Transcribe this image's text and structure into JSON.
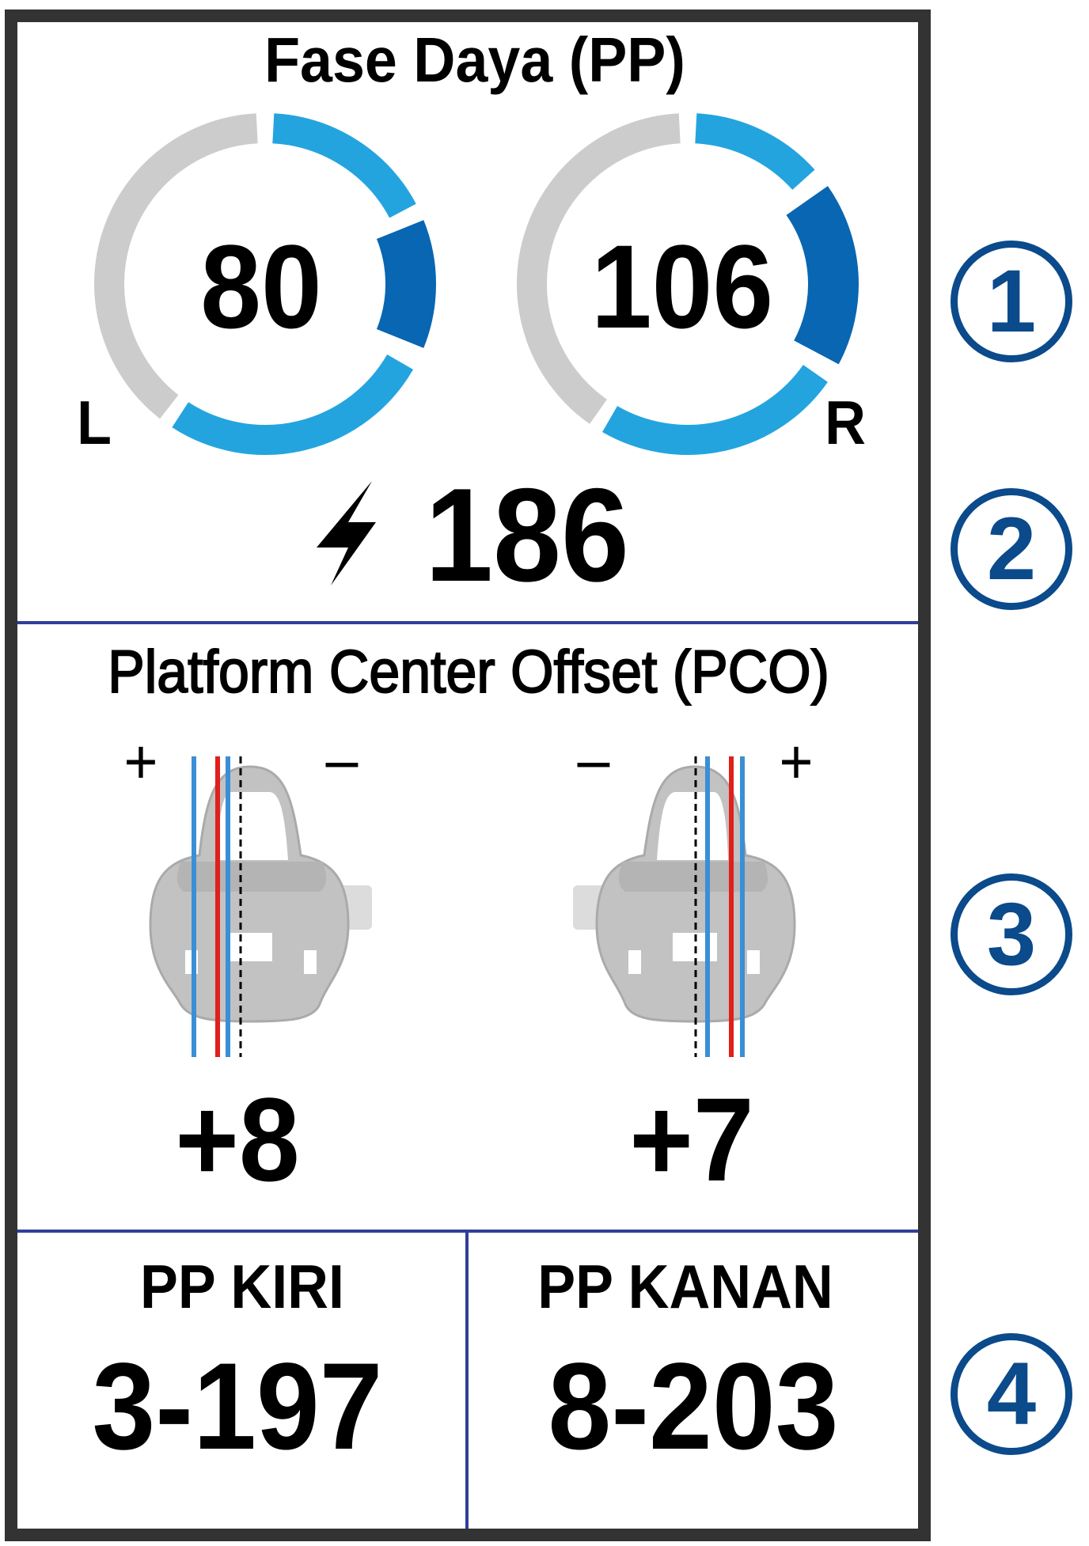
{
  "power_phase": {
    "title": "Fase Daya (PP)",
    "left": {
      "value": "80",
      "side_label": "L"
    },
    "right": {
      "value": "106",
      "side_label": "R"
    },
    "total_power": {
      "value": "186",
      "icon": "lightning-bolt-icon"
    }
  },
  "pco": {
    "title": "Platform Center Offset (PCO)",
    "left": {
      "value": "+8",
      "plus": "+",
      "minus": "–"
    },
    "right": {
      "value": "+7",
      "plus": "+",
      "minus": "–"
    }
  },
  "pp_fields": {
    "left": {
      "label": "PP KIRI",
      "value": "3-197"
    },
    "right": {
      "label": "PP KANAN",
      "value": "8-203"
    }
  },
  "callouts": [
    "1",
    "2",
    "3",
    "4"
  ],
  "colors": {
    "arc_light_blue": "#24a4df",
    "arc_dark_blue": "#0866b2",
    "arc_gray": "#cccccc",
    "divider": "#2f3f9a",
    "callout": "#0b4a8b",
    "pco_blue": "#3a8fd6",
    "pco_red": "#e0201a",
    "frame": "#333333"
  }
}
